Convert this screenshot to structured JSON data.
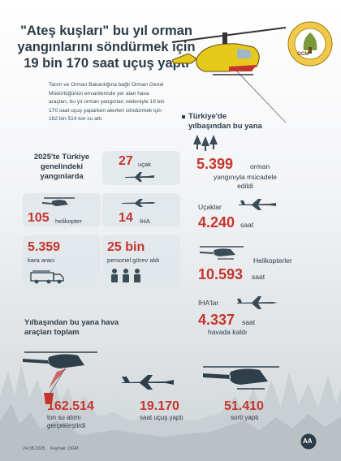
{
  "title_lines": [
    "\"Ateş kuşları\" bu yıl orman",
    "yangınlarını söndürmek için",
    "19 bin 170 saat uçuş yaptı"
  ],
  "intro_lines": [
    "Tarım ve Orman Bakanlığına bağlı Orman Genel",
    "Müdürlüğünün envanterinde yer alan hava",
    "araçları, bu yıl orman yangınları nedeniyle 19 bin",
    "170 saat uçuş yaparken alevleri söndürmek için",
    "162 bin 514 ton su attı"
  ],
  "logo_text": "OGM",
  "left_panel": {
    "heading_lines": [
      "2025'te Türkiye",
      "genelindeki",
      "yangınlarda"
    ],
    "aircraft_value": "27",
    "aircraft_label": "uçak",
    "helicopter_value": "105",
    "helicopter_label": "helikopter",
    "uav_value": "14",
    "uav_label": "İHA",
    "ground_value": "5.359",
    "ground_label": "kara aracı",
    "personnel_value": "25 bin",
    "personnel_label": "personel görev aldı"
  },
  "right_panel": {
    "heading_lines": [
      "Türkiye'de",
      "yılbaşından bu yana"
    ],
    "fires_value": "5.399",
    "fires_unit": "orman",
    "fires_label_lines": [
      "yangınıyla mücadele",
      "edildi"
    ],
    "planes_label": "Uçaklar",
    "planes_value": "4.240",
    "planes_unit": "saat",
    "helis_label": "Helikopterler",
    "helis_value": "10.593",
    "helis_unit": "saat",
    "uav_label": "İHA'lar",
    "uav_value": "4.337",
    "uav_unit": "saat",
    "uav_sub": "havada kaldı"
  },
  "totals": {
    "heading_lines": [
      "Yılbaşından bu yana hava",
      "araçları toplam"
    ],
    "water_value": "162.514",
    "water_label_lines": [
      "ton su atımı",
      "gerçekleştirdi"
    ],
    "hours_value": "19.170",
    "hours_label": "saat uçuş yaptı",
    "sorties_value": "51.410",
    "sorties_label": "sorti yaptı"
  },
  "footer": {
    "date": "24.08.2025",
    "source": "Kaynak: OGM",
    "agency": "AA"
  },
  "colors": {
    "accent": "#c6352c",
    "text": "#2b3c48",
    "card": "#e1e6ea",
    "icon": "#3a4c57"
  }
}
